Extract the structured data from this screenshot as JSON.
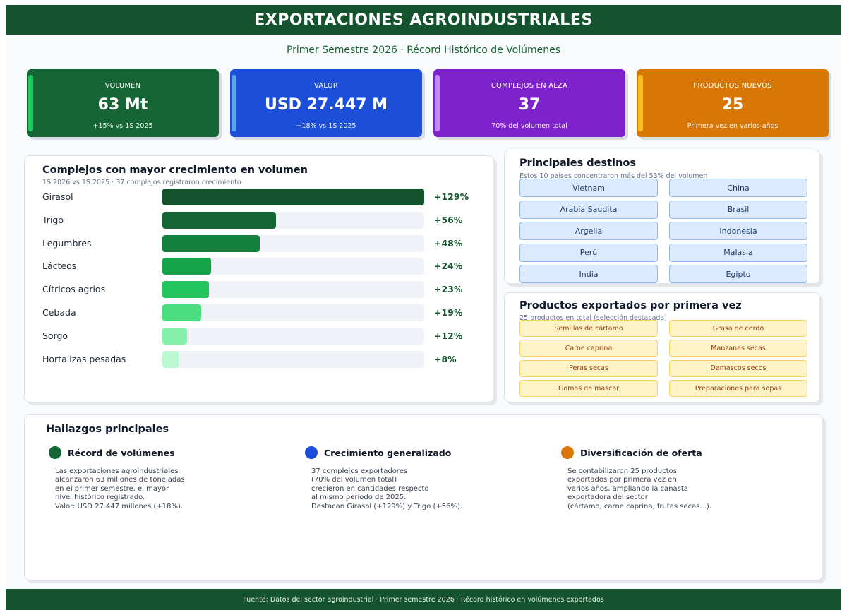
{
  "header": {
    "title": "EXPORTACIONES AGROINDUSTRIALES"
  },
  "subtitle": "Primer Semestre 2026  ·  Récord Histórico de Volúmenes",
  "kpis": [
    {
      "label": "VOLUMEN",
      "value": "63 Mt",
      "note": "+15% vs 1S 2025",
      "color": "#166534",
      "accent": "#22c55e"
    },
    {
      "label": "VALOR",
      "value": "USD 27.447 M",
      "note": "+18% vs 1S 2025",
      "color": "#1d4ed8",
      "accent": "#60a5fa"
    },
    {
      "label": "COMPLEJOS EN ALZA",
      "value": "37",
      "note": "70% del volumen total",
      "color": "#7e22ce",
      "accent": "#c084fc"
    },
    {
      "label": "PRODUCTOS NUEVOS",
      "value": "25",
      "note": "Primera vez en varios años",
      "color": "#d97706",
      "accent": "#fbbf24"
    }
  ],
  "growth": {
    "title": "Complejos con mayor crecimiento en volumen",
    "subtitle": "1S 2026 vs 1S 2025  ·  37 complejos registraron crecimiento",
    "items": [
      {
        "label": "Girasol",
        "value": "+129%",
        "pct": 129,
        "color": "#14532d"
      },
      {
        "label": "Trigo",
        "value": "+56%",
        "pct": 56,
        "color": "#166534"
      },
      {
        "label": "Legumbres",
        "value": "+48%",
        "pct": 48,
        "color": "#15803d"
      },
      {
        "label": "Lácteos",
        "value": "+24%",
        "pct": 24,
        "color": "#16a34a"
      },
      {
        "label": "Cítricos agrios",
        "value": "+23%",
        "pct": 23,
        "color": "#22c55e"
      },
      {
        "label": "Cebada",
        "value": "+19%",
        "pct": 19,
        "color": "#4ade80"
      },
      {
        "label": "Sorgo",
        "value": "+12%",
        "pct": 12,
        "color": "#86efac"
      },
      {
        "label": "Hortalizas pesadas",
        "value": "+8%",
        "pct": 8,
        "color": "#bbf7d0"
      }
    ]
  },
  "destinations": {
    "title": "Principales destinos",
    "subtitle": "Estos 10 países concentraron más del 53% del volumen",
    "items": [
      "Vietnam",
      "China",
      "Arabia Saudita",
      "Brasil",
      "Argelia",
      "Indonesia",
      "Perú",
      "Malasia",
      "India",
      "Egipto"
    ]
  },
  "new_products": {
    "title": "Productos exportados por primera vez",
    "subtitle": "25 productos en total (selección destacada)",
    "items": [
      "Semillas de cártamo",
      "Grasa de cerdo",
      "Carne caprina",
      "Manzanas secas",
      "Peras secas",
      "Damascos secos",
      "Gomas de mascar",
      "Preparaciones para sopas"
    ]
  },
  "findings": {
    "title": "Hallazgos principales",
    "items": [
      {
        "title": "Récord de volúmenes",
        "color": "#166534",
        "body": "Las exportaciones agroindustriales\nalcanzaron 63 millones de toneladas\nen el primer semestre, el mayor\nnivel histórico registrado.\nValor: USD 27.447 millones (+18%)."
      },
      {
        "title": "Crecimiento generalizado",
        "color": "#1d4ed8",
        "body": "37 complejos exportadores\n(70% del volumen total)\ncrecieron en cantidades respecto\nal mismo período de 2025.\nDestacan Girasol (+129%) y Trigo (+56%)."
      },
      {
        "title": "Diversificación de oferta",
        "color": "#d97706",
        "body": "Se contabilizaron 25 productos\nexportados por primera vez en\nvarios años, ampliando la canasta\nexportadora del sector\n(cártamo, carne caprina, frutas secas...)."
      }
    ]
  },
  "footer": "Fuente: Datos del sector agroindustrial  ·  Primer semestre 2026  ·  Récord histórico en volúmenes exportados"
}
